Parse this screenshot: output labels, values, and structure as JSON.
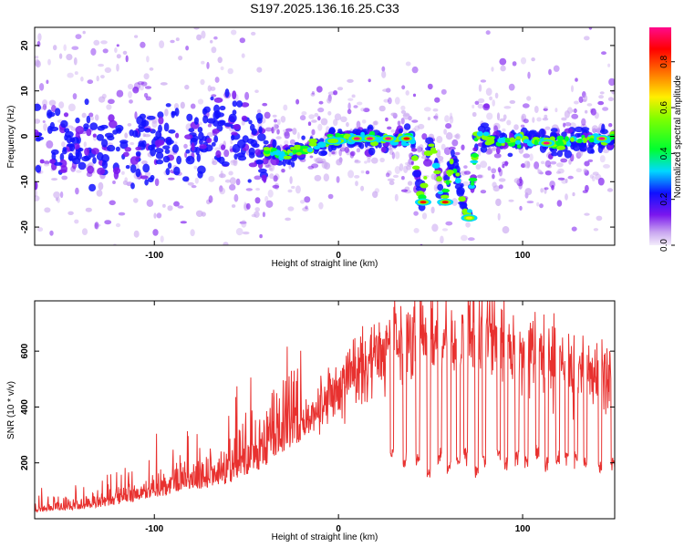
{
  "title": "S197.2025.136.16.25.C33",
  "chart_data": [
    {
      "type": "heatmap",
      "xlabel": "Height of straight line (km)",
      "ylabel": "Frequency (Hz)",
      "xlim": [
        -165,
        150
      ],
      "ylim": [
        -24,
        24
      ],
      "xticks": [
        -100,
        0,
        100
      ],
      "yticks": [
        -20,
        -10,
        0,
        10,
        20
      ],
      "colorbar": {
        "label": "Normalized spectral amplitude",
        "range": [
          0,
          0.95
        ],
        "ticks": [
          0.0,
          0.2,
          0.4,
          0.6,
          0.8
        ]
      },
      "ridge": [
        [
          -160,
          -2
        ],
        [
          -140,
          -2
        ],
        [
          -120,
          -3
        ],
        [
          -110,
          -3
        ],
        [
          -100,
          -2
        ],
        [
          -90,
          0
        ],
        [
          -80,
          -2
        ],
        [
          -70,
          2
        ],
        [
          -60,
          3
        ],
        [
          -50,
          0
        ],
        [
          -40,
          -3
        ],
        [
          -30,
          -4
        ],
        [
          -20,
          -3
        ],
        [
          -10,
          -1.5
        ],
        [
          0,
          -0.5
        ],
        [
          10,
          -0.5
        ],
        [
          20,
          -0.5
        ],
        [
          30,
          -0.5
        ],
        [
          40,
          -0.5
        ],
        [
          45,
          -14.5
        ],
        [
          50,
          -0.5
        ],
        [
          57,
          -14.5
        ],
        [
          62,
          -5
        ],
        [
          68,
          -15
        ],
        [
          71,
          -18
        ],
        [
          75,
          0
        ],
        [
          85,
          -1
        ],
        [
          100,
          -1
        ],
        [
          115,
          -1.5
        ],
        [
          130,
          -1
        ],
        [
          145,
          -0.5
        ]
      ],
      "hotspots": [
        {
          "x": 10,
          "y": -0.5,
          "amp": 0.95
        },
        {
          "x": 17,
          "y": -0.5,
          "amp": 0.9
        },
        {
          "x": 27,
          "y": -0.5,
          "amp": 0.9
        },
        {
          "x": 37,
          "y": -0.5,
          "amp": 0.8
        },
        {
          "x": 46,
          "y": -14.5,
          "amp": 0.85
        },
        {
          "x": 58,
          "y": -14.5,
          "amp": 0.85
        },
        {
          "x": 71,
          "y": -18,
          "amp": 0.6
        },
        {
          "x": 113,
          "y": -1.5,
          "amp": 0.95
        },
        {
          "x": 143,
          "y": -0.5,
          "amp": 0.95
        },
        {
          "x": 0,
          "y": -1,
          "amp": 0.45
        },
        {
          "x": -3,
          "y": -1,
          "amp": 0.45
        }
      ]
    },
    {
      "type": "line",
      "xlabel": "Height of straight line (km)",
      "ylabel": "SNR (10 * v/v)",
      "xlim": [
        -165,
        150
      ],
      "ylim": [
        0,
        780
      ],
      "xticks": [
        -100,
        0,
        100
      ],
      "yticks": [
        200,
        400,
        600
      ],
      "color": "#e8312f",
      "envelope": [
        [
          -165,
          30
        ],
        [
          -140,
          40
        ],
        [
          -120,
          60
        ],
        [
          -100,
          90
        ],
        [
          -80,
          120
        ],
        [
          -60,
          150
        ],
        [
          -50,
          180
        ],
        [
          -40,
          220
        ],
        [
          -30,
          270
        ],
        [
          -25,
          300
        ],
        [
          -20,
          330
        ],
        [
          -10,
          400
        ],
        [
          0,
          470
        ],
        [
          10,
          540
        ],
        [
          20,
          580
        ],
        [
          30,
          620
        ],
        [
          40,
          640
        ],
        [
          50,
          660
        ],
        [
          60,
          670
        ],
        [
          70,
          680
        ],
        [
          80,
          690
        ],
        [
          90,
          640
        ],
        [
          100,
          610
        ],
        [
          110,
          580
        ],
        [
          120,
          570
        ],
        [
          130,
          550
        ],
        [
          140,
          520
        ],
        [
          150,
          500
        ]
      ],
      "dropouts": [
        [
          28,
          30,
          230
        ],
        [
          35,
          37,
          200
        ],
        [
          42,
          44,
          210
        ],
        [
          48,
          50,
          160
        ],
        [
          54,
          56,
          220
        ],
        [
          59,
          61,
          190
        ],
        [
          64,
          66,
          210
        ],
        [
          68,
          70,
          230
        ],
        [
          74,
          76,
          180
        ],
        [
          78,
          80,
          210
        ],
        [
          86,
          88,
          240
        ],
        [
          90,
          92,
          200
        ],
        [
          96,
          98,
          220
        ],
        [
          101,
          103,
          210
        ],
        [
          107,
          109,
          240
        ],
        [
          112,
          114,
          200
        ],
        [
          118,
          120,
          210
        ],
        [
          123,
          125,
          230
        ],
        [
          128,
          130,
          210
        ],
        [
          133,
          135,
          200
        ],
        [
          141,
          143,
          180
        ],
        [
          148,
          150,
          200
        ]
      ]
    }
  ]
}
